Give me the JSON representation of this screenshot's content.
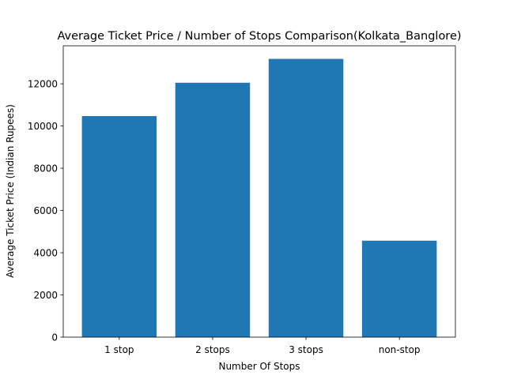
{
  "chart_data": {
    "type": "bar",
    "title": "Average Ticket Price / Number of Stops Comparison(Kolkata_Banglore)",
    "xlabel": "Number Of Stops",
    "ylabel": "Average Ticket Price (Indian Rupees)",
    "categories": [
      "1 stop",
      "2 stops",
      "3 stops",
      "non-stop"
    ],
    "values": [
      10470,
      12050,
      13180,
      4570
    ],
    "ylim": [
      0,
      13800
    ],
    "yticks": [
      0,
      2000,
      4000,
      6000,
      8000,
      10000,
      12000
    ],
    "bar_color": "#1f77b4",
    "grid": false,
    "legend": "none"
  }
}
